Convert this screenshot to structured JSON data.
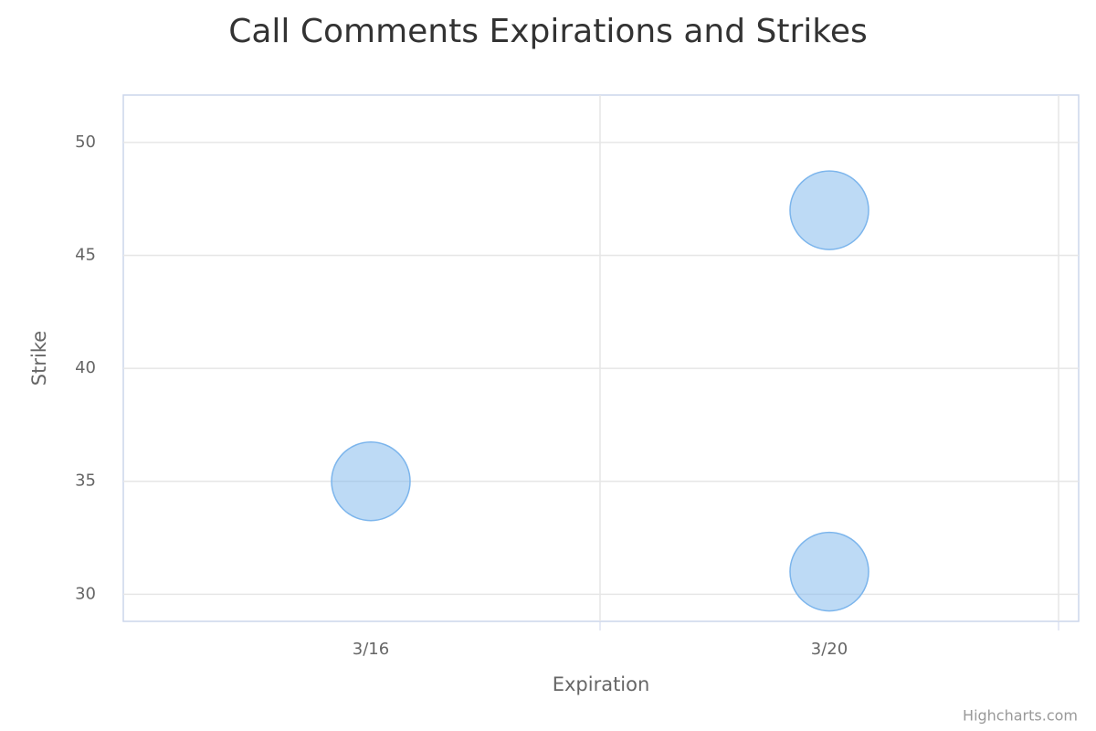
{
  "chart_data": {
    "type": "bubble",
    "title": "Call Comments Expirations and Strikes",
    "x_label": "Expiration",
    "y_label": "Strike",
    "credits": "Highcharts.com",
    "categories": [
      "3/16",
      "3/20"
    ],
    "series": [
      {
        "color": "#7cb5ec",
        "x": [
          "3/16",
          "3/20",
          "3/20"
        ],
        "values": [
          35,
          47,
          31
        ]
      }
    ],
    "ylim": [
      28.8,
      52.1
    ],
    "yticks": [
      30,
      35,
      40,
      45,
      50
    ],
    "grid": true
  }
}
